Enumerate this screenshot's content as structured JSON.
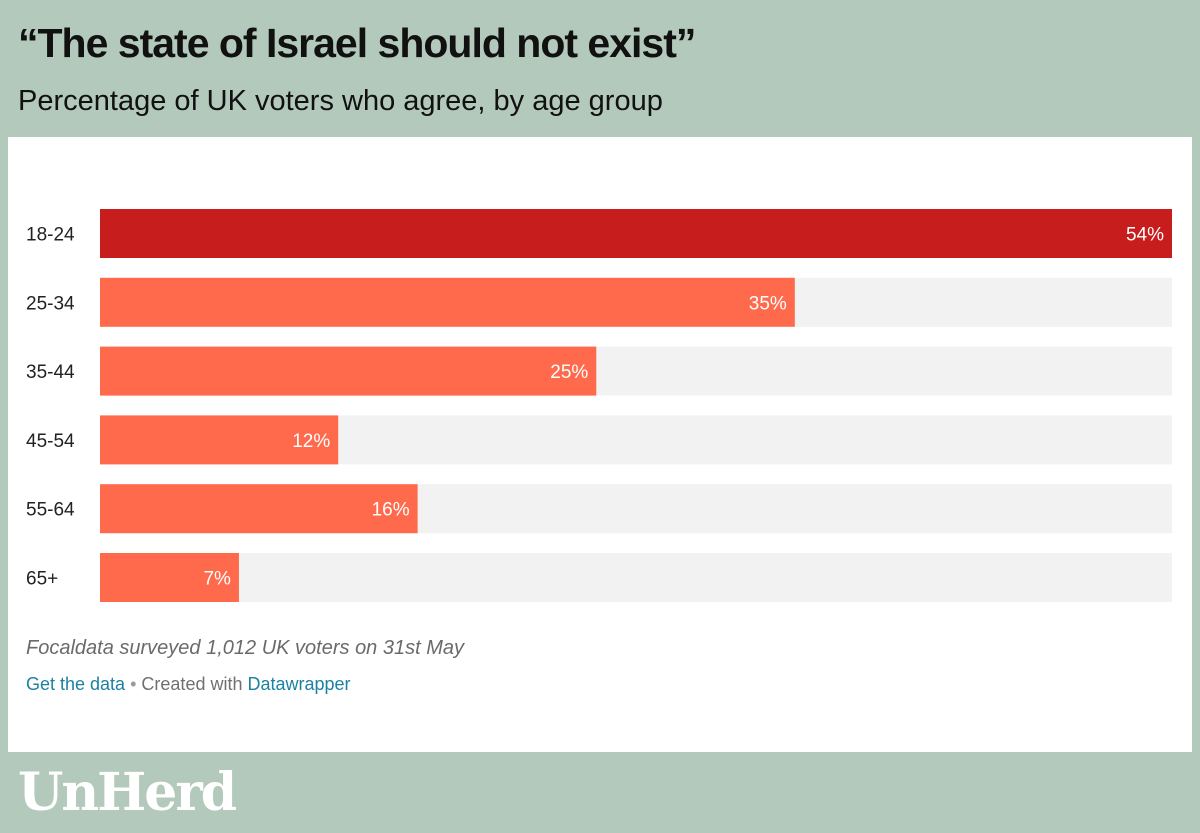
{
  "header": {
    "title": "“The state of Israel should not exist”",
    "subtitle": "Percentage of UK voters who agree, by age group"
  },
  "chart_data": {
    "type": "bar",
    "orientation": "horizontal",
    "title": "“The state of Israel should not exist”",
    "subtitle": "Percentage of UK voters who agree, by age group",
    "categories": [
      "18-24",
      "25-34",
      "35-44",
      "45-54",
      "55-64",
      "65+"
    ],
    "values": [
      54,
      35,
      25,
      12,
      16,
      7
    ],
    "value_labels": [
      "54%",
      "35%",
      "25%",
      "12%",
      "16%",
      "7%"
    ],
    "xlim": [
      0,
      54
    ],
    "grid": false,
    "colors": {
      "highlight": "#c71e1d",
      "bar": "#ff6a4d",
      "track": "#f2f2f2",
      "label": "#ffffff"
    }
  },
  "footer": {
    "note": "Focaldata surveyed 1,012 UK voters on 31st May",
    "get_data_link": "Get the data",
    "separator": "•",
    "created_with": "Created with",
    "datawrapper_link": "Datawrapper"
  },
  "brand": {
    "logo_text": "UnHerd"
  }
}
